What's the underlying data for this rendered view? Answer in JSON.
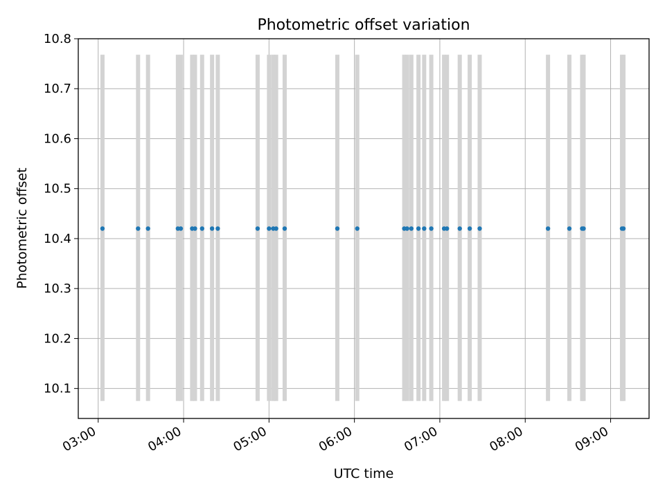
{
  "chart_data": {
    "type": "scatter",
    "title": "Photometric offset variation",
    "xlabel": "UTC time",
    "ylabel": "Photometric offset",
    "xlim": [
      "02:46",
      "09:27"
    ],
    "ylim": [
      10.04,
      10.8
    ],
    "x_ticks": [
      "03:00",
      "04:00",
      "05:00",
      "06:00",
      "07:00",
      "08:00",
      "09:00"
    ],
    "y_ticks": [
      "10.1",
      "10.2",
      "10.3",
      "10.4",
      "10.5",
      "10.6",
      "10.7",
      "10.8"
    ],
    "grid": true,
    "band_range": [
      10.075,
      10.768
    ],
    "series": [
      {
        "color": "#1f77b4",
        "x": [
          "03:03",
          "03:28",
          "03:35",
          "03:56",
          "03:58",
          "04:06",
          "04:08",
          "04:13",
          "04:20",
          "04:24",
          "04:52",
          "05:00",
          "05:03",
          "05:05",
          "05:11",
          "05:48",
          "06:02",
          "06:35",
          "06:37",
          "06:40",
          "06:45",
          "06:49",
          "06:54",
          "07:03",
          "07:05",
          "07:14",
          "07:21",
          "07:28",
          "08:16",
          "08:31",
          "08:40",
          "08:41",
          "09:08",
          "09:09"
        ],
        "y": [
          10.42,
          10.42,
          10.42,
          10.42,
          10.42,
          10.42,
          10.42,
          10.42,
          10.42,
          10.42,
          10.42,
          10.42,
          10.42,
          10.42,
          10.42,
          10.42,
          10.42,
          10.42,
          10.42,
          10.42,
          10.42,
          10.42,
          10.42,
          10.42,
          10.42,
          10.42,
          10.42,
          10.42,
          10.42,
          10.42,
          10.42,
          10.42,
          10.42,
          10.42
        ]
      }
    ],
    "errorbar_color": "#d3d3d3"
  }
}
